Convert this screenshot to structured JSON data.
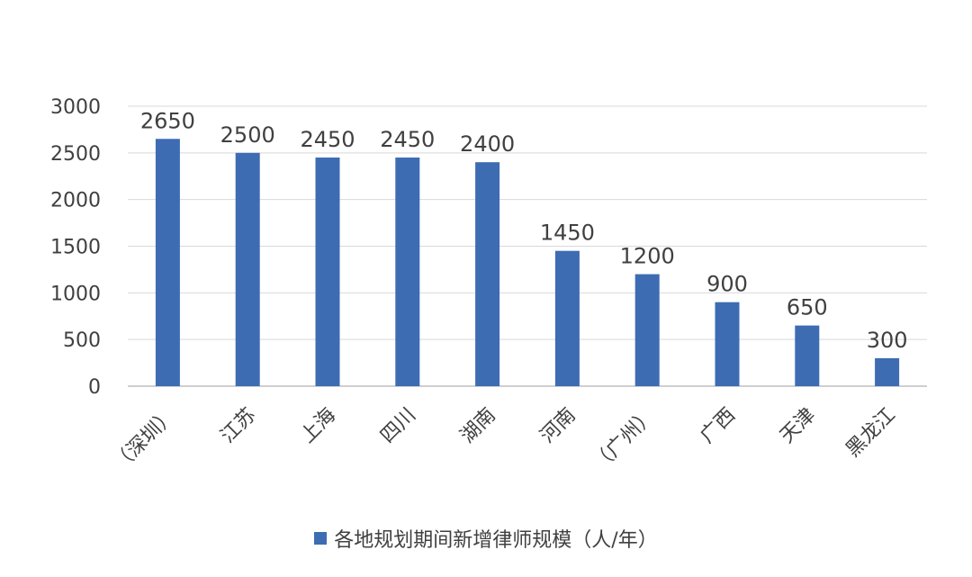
{
  "colors": {
    "bar": "#3d6cb3",
    "grid": "#d9d9d9",
    "axis": "#bfbfbf",
    "text": "#404040"
  },
  "chart_data": {
    "type": "bar",
    "title": "",
    "xlabel": "",
    "ylabel": "",
    "ylim": [
      0,
      3000
    ],
    "yticks": [
      0,
      500,
      1000,
      1500,
      2000,
      2500,
      3000
    ],
    "grid": true,
    "legend_position": "bottom",
    "categories": [
      "（深圳）",
      "江苏",
      "上海",
      "四川",
      "湖南",
      "河南",
      "（广州）",
      "广西",
      "天津",
      "黑龙江"
    ],
    "series": [
      {
        "name": "各地规划期间新增律师规模（人/年）",
        "values": [
          2650,
          2500,
          2450,
          2450,
          2400,
          1450,
          1200,
          900,
          650,
          300
        ]
      }
    ]
  }
}
